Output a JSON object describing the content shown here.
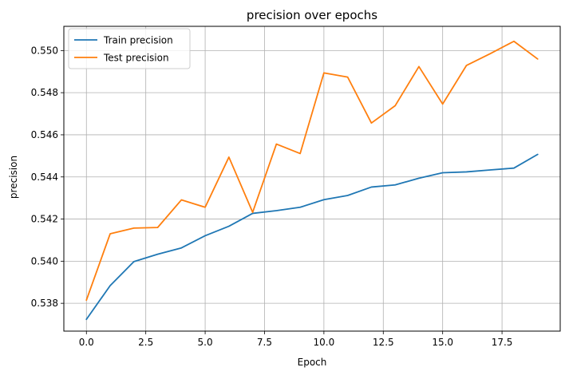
{
  "chart_data": {
    "type": "line",
    "title": "precision over epochs",
    "xlabel": "Epoch",
    "ylabel": "precision",
    "xlim": [
      -0.95,
      19.95
    ],
    "ylim": [
      0.53668,
      0.55115
    ],
    "xticks": [
      0.0,
      2.5,
      5.0,
      7.5,
      10.0,
      12.5,
      15.0,
      17.5
    ],
    "xtick_labels": [
      "0.0",
      "2.5",
      "5.0",
      "7.5",
      "10.0",
      "12.5",
      "15.0",
      "17.5"
    ],
    "yticks": [
      0.538,
      0.54,
      0.542,
      0.544,
      0.546,
      0.548,
      0.55
    ],
    "ytick_labels": [
      "0.538",
      "0.540",
      "0.542",
      "0.544",
      "0.546",
      "0.548",
      "0.550"
    ],
    "grid": true,
    "legend_position": "upper-left",
    "x": [
      0,
      1,
      2,
      3,
      4,
      5,
      6,
      7,
      8,
      9,
      10,
      11,
      12,
      13,
      14,
      15,
      16,
      17,
      18,
      19
    ],
    "series": [
      {
        "name": "Train precision",
        "color": "#1f77b4",
        "values": [
          0.53724,
          0.53884,
          0.53998,
          0.54033,
          0.54063,
          0.54121,
          0.54166,
          0.54227,
          0.5424,
          0.54256,
          0.54292,
          0.54312,
          0.54352,
          0.54362,
          0.54394,
          0.5442,
          0.54424,
          0.54433,
          0.54442,
          0.54507
        ]
      },
      {
        "name": "Test precision",
        "color": "#ff7f0e",
        "values": [
          0.53815,
          0.5413,
          0.54157,
          0.5416,
          0.54291,
          0.54256,
          0.54494,
          0.54232,
          0.54556,
          0.54511,
          0.54894,
          0.54874,
          0.54656,
          0.54738,
          0.54924,
          0.54746,
          0.54929,
          0.54985,
          0.55044,
          0.5496
        ]
      }
    ]
  }
}
